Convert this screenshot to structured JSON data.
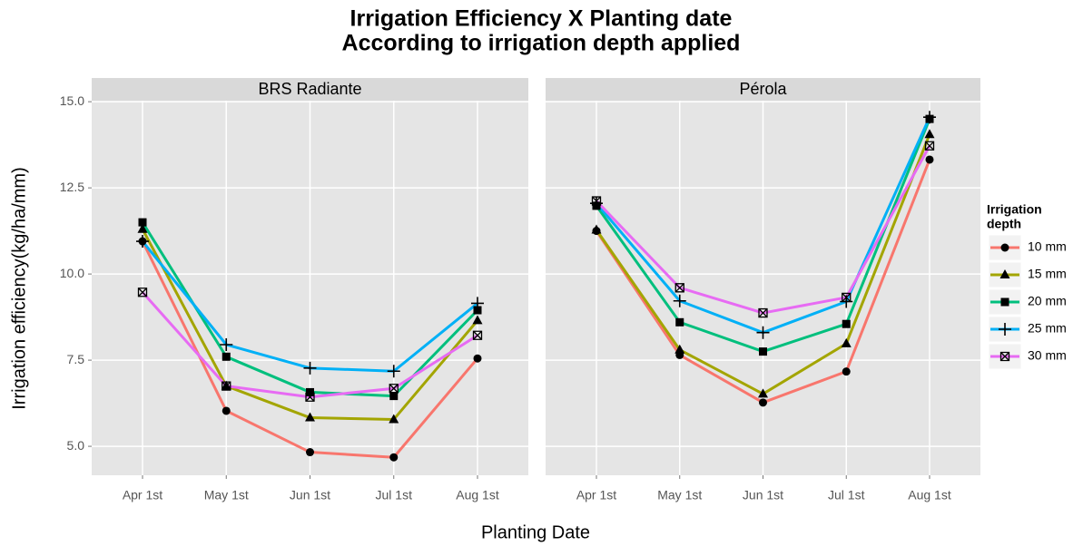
{
  "chart_data": {
    "type": "line",
    "title": "Irrigation Efficiency X Planting date",
    "subtitle": "According to irrigation depth applied",
    "x_label": "Planting Date",
    "y_label": "Irrigation efficiency(kg/ha/mm)",
    "legend_title": [
      "Irrigation",
      "depth"
    ],
    "categories": [
      "Apr 1st",
      "May 1st",
      "Jun 1st",
      "Jul 1st",
      "Aug 1st"
    ],
    "ylim": [
      4.16,
      15.03
    ],
    "yticks": [
      {
        "value": 5,
        "label": "5.0"
      },
      7.5,
      {
        "value": 10,
        "label": "10.0"
      },
      12.5,
      {
        "value": 15,
        "label": "15.0"
      }
    ],
    "grid": true,
    "legend": [
      {
        "name": "10 mm",
        "color": "#F8766D",
        "marker": "circle"
      },
      {
        "name": "15 mm",
        "color": "#A3A500",
        "marker": "triangle"
      },
      {
        "name": "20 mm",
        "color": "#00BF7D",
        "marker": "square"
      },
      {
        "name": "25 mm",
        "color": "#00B0F6",
        "marker": "plus"
      },
      {
        "name": "30 mm",
        "color": "#E76BF3",
        "marker": "boxx"
      }
    ],
    "facets": [
      {
        "title": "BRS Radiante",
        "series": [
          {
            "values": [
              10.95,
              6.03,
              4.83,
              4.68,
              7.55
            ]
          },
          {
            "values": [
              11.3,
              6.75,
              5.83,
              5.78,
              8.65
            ]
          },
          {
            "values": [
              11.5,
              7.6,
              6.57,
              6.46,
              8.95
            ]
          },
          {
            "values": [
              10.95,
              7.95,
              7.27,
              7.18,
              9.15
            ]
          },
          {
            "values": [
              9.47,
              6.75,
              6.43,
              6.68,
              8.22
            ]
          }
        ]
      },
      {
        "title": "Pérola",
        "series": [
          {
            "values": [
              11.25,
              7.65,
              6.27,
              7.17,
              13.32
            ]
          },
          {
            "values": [
              11.28,
              7.8,
              6.52,
              7.98,
              14.05
            ]
          },
          {
            "values": [
              11.98,
              8.6,
              7.75,
              8.55,
              14.5
            ]
          },
          {
            "values": [
              12.05,
              9.22,
              8.3,
              9.2,
              14.55
            ]
          },
          {
            "values": [
              12.12,
              9.6,
              8.87,
              9.32,
              13.72
            ]
          }
        ]
      }
    ]
  }
}
